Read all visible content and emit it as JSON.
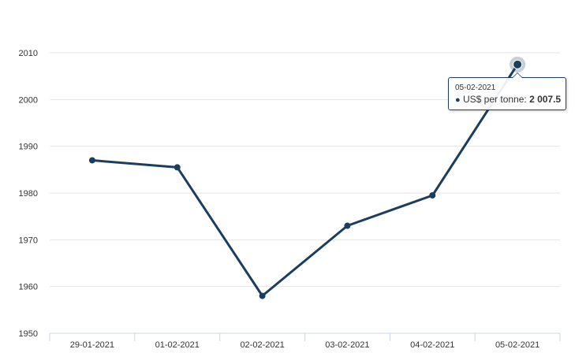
{
  "chart_data": {
    "type": "line",
    "categories": [
      "29-01-2021",
      "01-02-2021",
      "02-02-2021",
      "03-02-2021",
      "04-02-2021",
      "05-02-2021"
    ],
    "series": [
      {
        "name": "US$ per tonne",
        "values": [
          1987.0,
          1985.5,
          1958.0,
          1973.0,
          1979.5,
          2007.5
        ],
        "color": "#1b3e5f"
      }
    ],
    "y_ticks": [
      "1950",
      "1960",
      "1970",
      "1980",
      "1990",
      "2000",
      "2010"
    ],
    "ylim": [
      1950,
      2010
    ],
    "grid": true,
    "highlighted_index": 5,
    "tooltip": {
      "date": "05-02-2021",
      "series_label": "US$ per tonne: ",
      "value_text": "2 007.5"
    }
  }
}
